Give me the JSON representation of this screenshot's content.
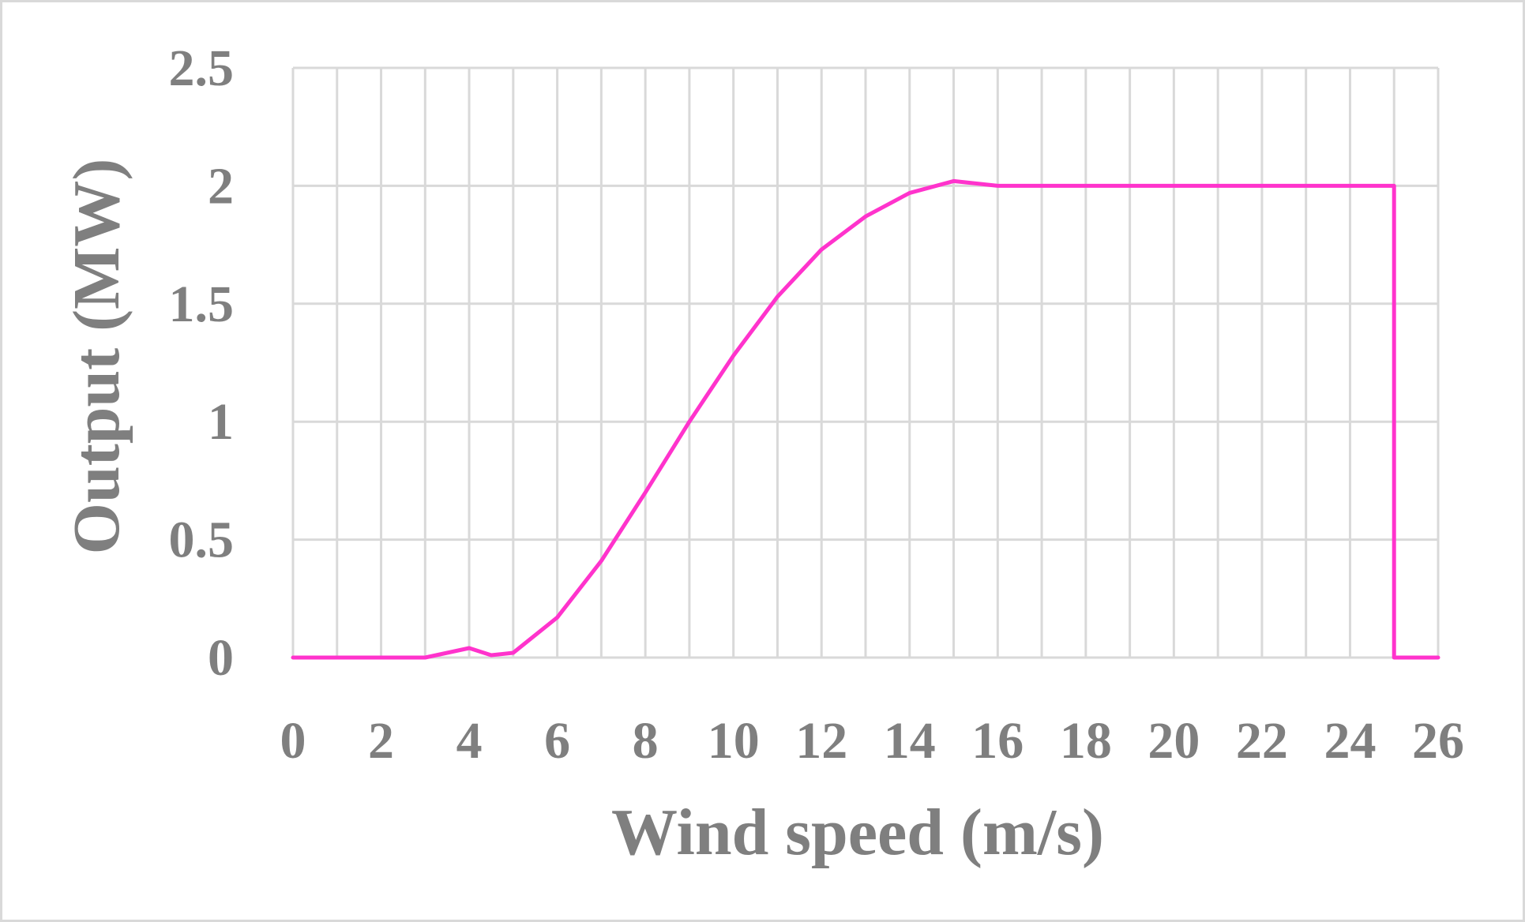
{
  "chart_data": {
    "type": "line",
    "xlabel": "Wind speed (m/s)",
    "ylabel": "Output (MW)",
    "xlim": [
      0,
      26
    ],
    "ylim": [
      0,
      2.5
    ],
    "x_ticks": [
      0,
      2,
      4,
      6,
      8,
      10,
      12,
      14,
      16,
      18,
      20,
      22,
      24,
      26
    ],
    "y_ticks": [
      0,
      0.5,
      1,
      1.5,
      2,
      2.5
    ],
    "grid": true,
    "legend": "none",
    "line_color": "#ff33cc",
    "series": [
      {
        "x": [
          0,
          1,
          2,
          3,
          4,
          4.5,
          5,
          6,
          7,
          8,
          9,
          10,
          11,
          12,
          13,
          14,
          15,
          16,
          17,
          18,
          19,
          20,
          21,
          22,
          23,
          24,
          25,
          25,
          26
        ],
        "y": [
          0,
          0,
          0,
          0,
          0.04,
          0.01,
          0.02,
          0.17,
          0.41,
          0.7,
          1.0,
          1.28,
          1.53,
          1.73,
          1.87,
          1.97,
          2.02,
          2.0,
          2.0,
          2.0,
          2.0,
          2.0,
          2.0,
          2.0,
          2.0,
          2.0,
          2.0,
          0,
          0
        ]
      }
    ]
  }
}
